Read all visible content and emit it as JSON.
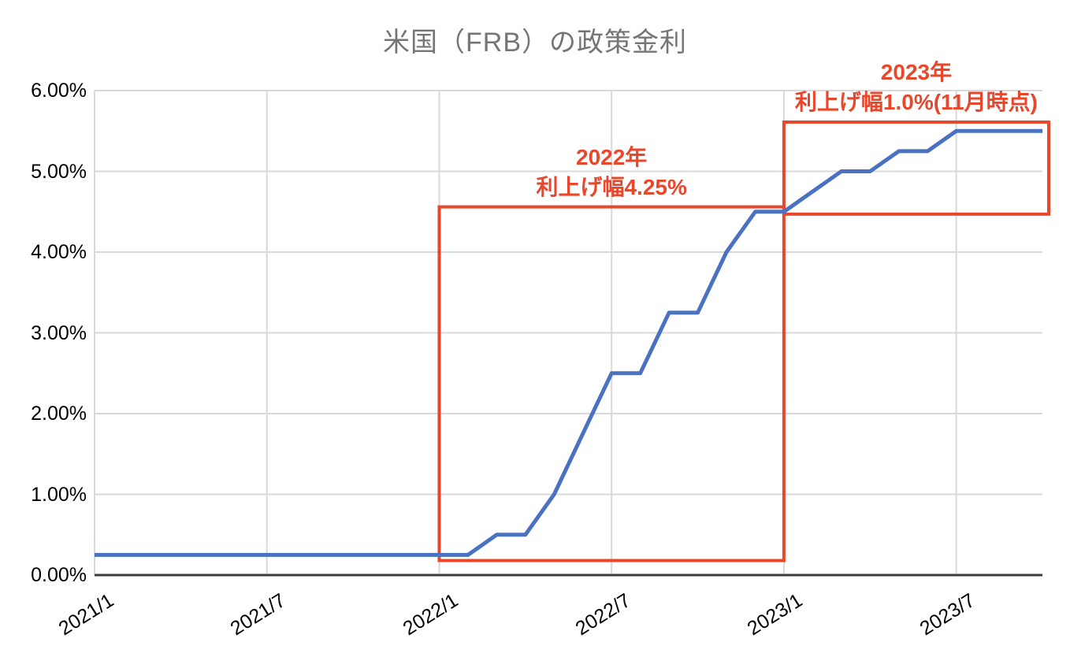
{
  "title": "米国（FRB）の政策金利",
  "chart_data": {
    "type": "line",
    "x": [
      "2021/1",
      "2021/2",
      "2021/3",
      "2021/4",
      "2021/5",
      "2021/6",
      "2021/7",
      "2021/8",
      "2021/9",
      "2021/10",
      "2021/11",
      "2021/12",
      "2022/1",
      "2022/2",
      "2022/3",
      "2022/4",
      "2022/5",
      "2022/6",
      "2022/7",
      "2022/8",
      "2022/9",
      "2022/10",
      "2022/11",
      "2022/12",
      "2023/1",
      "2023/2",
      "2023/3",
      "2023/4",
      "2023/5",
      "2023/6",
      "2023/7",
      "2023/8",
      "2023/9",
      "2023/10"
    ],
    "values": [
      0.25,
      0.25,
      0.25,
      0.25,
      0.25,
      0.25,
      0.25,
      0.25,
      0.25,
      0.25,
      0.25,
      0.25,
      0.25,
      0.25,
      0.5,
      0.5,
      1.0,
      1.75,
      2.5,
      2.5,
      3.25,
      3.25,
      4.0,
      4.5,
      4.5,
      4.75,
      5.0,
      5.0,
      5.25,
      5.25,
      5.5,
      5.5,
      5.5,
      5.5
    ],
    "ylim": [
      0,
      6
    ],
    "grid": true,
    "x_ticks": [
      {
        "month": "2021/1",
        "label": "2021/1"
      },
      {
        "month": "2021/7",
        "label": "2021/7"
      },
      {
        "month": "2022/1",
        "label": "2022/1"
      },
      {
        "month": "2022/7",
        "label": "2022/7"
      },
      {
        "month": "2023/1",
        "label": "2023/1"
      },
      {
        "month": "2023/7",
        "label": "2023/7"
      }
    ],
    "y_ticks": [
      {
        "value": 0,
        "label": "0.00%"
      },
      {
        "value": 1,
        "label": "1.00%"
      },
      {
        "value": 2,
        "label": "2.00%"
      },
      {
        "value": 3,
        "label": "3.00%"
      },
      {
        "value": 4,
        "label": "4.00%"
      },
      {
        "value": 5,
        "label": "5.00%"
      },
      {
        "value": 6,
        "label": "6.00%"
      }
    ],
    "annotations": [
      {
        "line1": "2022年",
        "line2": "利上げ幅4.25%",
        "start_month": "2022/1",
        "end_month": "2023/1",
        "value_top": 4.56,
        "value_bottom": 0.18,
        "extends_past_end": false
      },
      {
        "line1": "2023年",
        "line2": "利上げ幅1.0%(11月時点)",
        "start_month": "2023/1",
        "end_month": "2023/10",
        "value_top": 5.61,
        "value_bottom": 4.47,
        "extends_past_end": true
      }
    ],
    "colors": {
      "line": "#4a72c0",
      "grid": "#d9d9d9",
      "axis": "#3c3c3c",
      "accent_red": "#e8472c",
      "title_text": "#757575",
      "tick_text": "#000000"
    }
  }
}
